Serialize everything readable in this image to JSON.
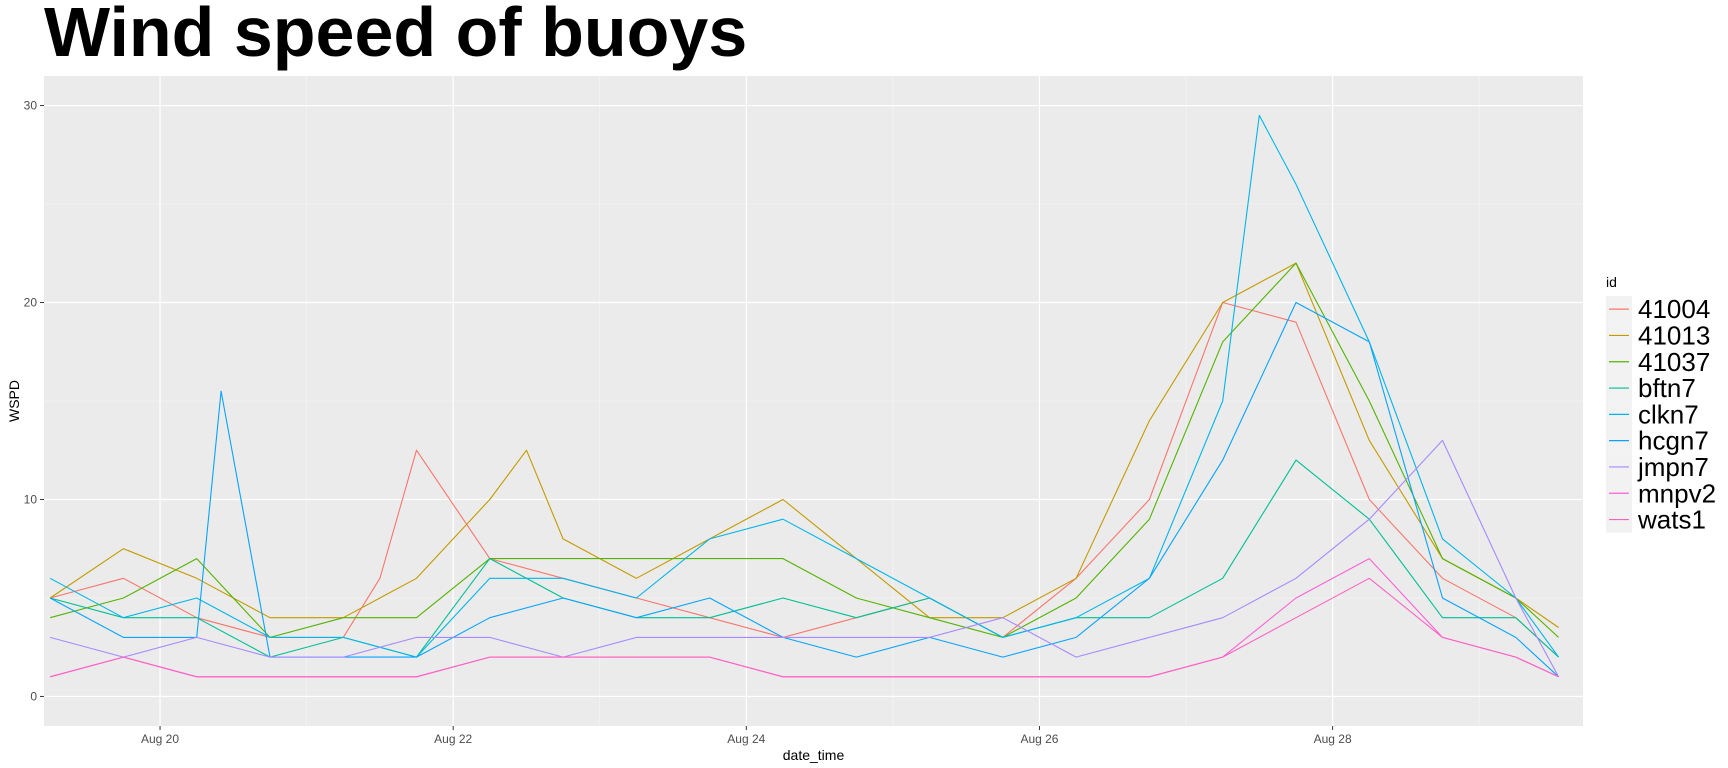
{
  "chart_data": {
    "type": "line",
    "title": "Wind speed of buoys",
    "xlabel": "date_time",
    "ylabel": "WSPD",
    "x_range": [
      "2020-08-19T05:00",
      "2020-08-29T17:00"
    ],
    "ylim": [
      -1.5,
      31.5
    ],
    "x_ticks": [
      "Aug 20",
      "Aug 22",
      "Aug 24",
      "Aug 26",
      "Aug 28"
    ],
    "x_tick_dates": [
      "2020-08-20",
      "2020-08-22",
      "2020-08-24",
      "2020-08-26",
      "2020-08-28"
    ],
    "y_ticks": [
      0,
      10,
      20,
      30
    ],
    "grid": true,
    "legend_title": "id",
    "legend_position": "right",
    "series": [
      {
        "name": "41004",
        "color": "#F8766D",
        "x": [
          "2020-08-19T06:00",
          "2020-08-19T18:00",
          "2020-08-20T06:00",
          "2020-08-20T18:00",
          "2020-08-21T06:00",
          "2020-08-21T12:00",
          "2020-08-21T18:00",
          "2020-08-22T06:00",
          "2020-08-22T18:00",
          "2020-08-23T06:00",
          "2020-08-23T18:00",
          "2020-08-24T06:00",
          "2020-08-24T18:00",
          "2020-08-25T06:00",
          "2020-08-25T18:00",
          "2020-08-26T06:00",
          "2020-08-26T18:00",
          "2020-08-27T06:00",
          "2020-08-27T18:00",
          "2020-08-28T06:00",
          "2020-08-28T18:00",
          "2020-08-29T06:00",
          "2020-08-29T13:00"
        ],
        "y": [
          5,
          6,
          4,
          3,
          3,
          6,
          12.5,
          7,
          6,
          5,
          4,
          3,
          4,
          5,
          3,
          6,
          10,
          20,
          19,
          10,
          6,
          4,
          2
        ]
      },
      {
        "name": "41013",
        "color": "#C49A00",
        "x": [
          "2020-08-19T06:00",
          "2020-08-19T18:00",
          "2020-08-20T06:00",
          "2020-08-20T18:00",
          "2020-08-21T06:00",
          "2020-08-21T18:00",
          "2020-08-22T06:00",
          "2020-08-22T12:00",
          "2020-08-22T18:00",
          "2020-08-23T06:00",
          "2020-08-23T18:00",
          "2020-08-24T06:00",
          "2020-08-24T18:00",
          "2020-08-25T06:00",
          "2020-08-25T18:00",
          "2020-08-26T06:00",
          "2020-08-26T18:00",
          "2020-08-27T06:00",
          "2020-08-27T18:00",
          "2020-08-28T06:00",
          "2020-08-28T18:00",
          "2020-08-29T06:00",
          "2020-08-29T13:00"
        ],
        "y": [
          5,
          7.5,
          6,
          4,
          4,
          6,
          10,
          12.5,
          8,
          6,
          8,
          10,
          7,
          4,
          4,
          6,
          14,
          20,
          22,
          13,
          7,
          5,
          3.5
        ]
      },
      {
        "name": "41037",
        "color": "#53B400",
        "x": [
          "2020-08-19T06:00",
          "2020-08-19T18:00",
          "2020-08-20T06:00",
          "2020-08-20T18:00",
          "2020-08-21T06:00",
          "2020-08-21T18:00",
          "2020-08-22T06:00",
          "2020-08-22T18:00",
          "2020-08-23T06:00",
          "2020-08-23T18:00",
          "2020-08-24T06:00",
          "2020-08-24T18:00",
          "2020-08-25T06:00",
          "2020-08-25T18:00",
          "2020-08-26T06:00",
          "2020-08-26T18:00",
          "2020-08-27T06:00",
          "2020-08-27T18:00",
          "2020-08-28T06:00",
          "2020-08-28T18:00",
          "2020-08-29T06:00",
          "2020-08-29T13:00"
        ],
        "y": [
          4,
          5,
          7,
          3,
          4,
          4,
          7,
          7,
          7,
          7,
          7,
          5,
          4,
          3,
          5,
          9,
          18,
          22,
          15,
          7,
          5,
          3
        ]
      },
      {
        "name": "bftn7",
        "color": "#00C094",
        "x": [
          "2020-08-19T06:00",
          "2020-08-19T18:00",
          "2020-08-20T06:00",
          "2020-08-20T18:00",
          "2020-08-21T06:00",
          "2020-08-21T18:00",
          "2020-08-22T06:00",
          "2020-08-22T18:00",
          "2020-08-23T06:00",
          "2020-08-23T18:00",
          "2020-08-24T06:00",
          "2020-08-24T18:00",
          "2020-08-25T06:00",
          "2020-08-25T18:00",
          "2020-08-26T06:00",
          "2020-08-26T18:00",
          "2020-08-27T06:00",
          "2020-08-27T18:00",
          "2020-08-28T06:00",
          "2020-08-28T18:00",
          "2020-08-29T06:00",
          "2020-08-29T13:00"
        ],
        "y": [
          5,
          4,
          4,
          2,
          3,
          2,
          7,
          5,
          4,
          4,
          5,
          4,
          5,
          3,
          4,
          4,
          6,
          12,
          9,
          4,
          4,
          2
        ]
      },
      {
        "name": "clkn7",
        "color": "#00B6EB",
        "x": [
          "2020-08-19T06:00",
          "2020-08-19T18:00",
          "2020-08-20T06:00",
          "2020-08-20T18:00",
          "2020-08-21T06:00",
          "2020-08-21T18:00",
          "2020-08-22T06:00",
          "2020-08-22T18:00",
          "2020-08-23T06:00",
          "2020-08-23T18:00",
          "2020-08-24T06:00",
          "2020-08-24T18:00",
          "2020-08-25T06:00",
          "2020-08-25T18:00",
          "2020-08-26T06:00",
          "2020-08-26T18:00",
          "2020-08-27T06:00",
          "2020-08-27T12:00",
          "2020-08-27T18:00",
          "2020-08-28T06:00",
          "2020-08-28T18:00",
          "2020-08-29T06:00",
          "2020-08-29T13:00"
        ],
        "y": [
          6,
          4,
          5,
          3,
          3,
          2,
          6,
          6,
          5,
          8,
          9,
          7,
          5,
          3,
          4,
          6,
          15,
          29.5,
          26,
          18,
          8,
          5,
          2
        ]
      },
      {
        "name": "hcgn7",
        "color": "#06A4FF",
        "x": [
          "2020-08-19T06:00",
          "2020-08-19T18:00",
          "2020-08-20T06:00",
          "2020-08-20T10:00",
          "2020-08-20T18:00",
          "2020-08-21T06:00",
          "2020-08-21T18:00",
          "2020-08-22T06:00",
          "2020-08-22T18:00",
          "2020-08-23T06:00",
          "2020-08-23T18:00",
          "2020-08-24T06:00",
          "2020-08-24T18:00",
          "2020-08-25T06:00",
          "2020-08-25T18:00",
          "2020-08-26T06:00",
          "2020-08-26T18:00",
          "2020-08-27T06:00",
          "2020-08-27T18:00",
          "2020-08-28T06:00",
          "2020-08-28T18:00",
          "2020-08-29T06:00",
          "2020-08-29T13:00"
        ],
        "y": [
          5,
          3,
          3,
          15.5,
          2,
          2,
          2,
          4,
          5,
          4,
          5,
          3,
          2,
          3,
          2,
          3,
          6,
          12,
          20,
          18,
          5,
          3,
          1
        ]
      },
      {
        "name": "jmpn7",
        "color": "#A58AFF",
        "x": [
          "2020-08-19T06:00",
          "2020-08-19T18:00",
          "2020-08-20T06:00",
          "2020-08-20T18:00",
          "2020-08-21T06:00",
          "2020-08-21T18:00",
          "2020-08-22T06:00",
          "2020-08-22T18:00",
          "2020-08-23T06:00",
          "2020-08-23T18:00",
          "2020-08-24T06:00",
          "2020-08-24T18:00",
          "2020-08-25T06:00",
          "2020-08-25T18:00",
          "2020-08-26T06:00",
          "2020-08-26T18:00",
          "2020-08-27T06:00",
          "2020-08-27T18:00",
          "2020-08-28T06:00",
          "2020-08-28T18:00",
          "2020-08-29T06:00",
          "2020-08-29T13:00"
        ],
        "y": [
          3,
          2,
          3,
          2,
          2,
          3,
          3,
          2,
          3,
          3,
          3,
          3,
          3,
          4,
          2,
          3,
          4,
          6,
          9,
          13,
          5,
          1
        ]
      },
      {
        "name": "mnpv2",
        "color": "#FB61D7",
        "x": [
          "2020-08-19T06:00",
          "2020-08-19T18:00",
          "2020-08-20T06:00",
          "2020-08-20T18:00",
          "2020-08-21T06:00",
          "2020-08-21T18:00",
          "2020-08-22T06:00",
          "2020-08-22T18:00",
          "2020-08-23T06:00",
          "2020-08-23T18:00",
          "2020-08-24T06:00",
          "2020-08-24T18:00",
          "2020-08-25T06:00",
          "2020-08-25T18:00",
          "2020-08-26T06:00",
          "2020-08-26T18:00",
          "2020-08-27T06:00",
          "2020-08-27T18:00",
          "2020-08-28T06:00",
          "2020-08-28T18:00",
          "2020-08-29T06:00",
          "2020-08-29T13:00"
        ],
        "y": [
          1,
          2,
          1,
          1,
          1,
          1,
          2,
          2,
          2,
          2,
          1,
          1,
          1,
          1,
          1,
          1,
          2,
          5,
          7,
          3,
          2,
          1
        ]
      },
      {
        "name": "wats1",
        "color": "#FF61C3",
        "x": [
          "2020-08-19T06:00",
          "2020-08-19T18:00",
          "2020-08-20T06:00",
          "2020-08-20T18:00",
          "2020-08-21T06:00",
          "2020-08-21T18:00",
          "2020-08-22T06:00",
          "2020-08-22T18:00",
          "2020-08-23T06:00",
          "2020-08-23T18:00",
          "2020-08-24T06:00",
          "2020-08-24T18:00",
          "2020-08-25T06:00",
          "2020-08-25T18:00",
          "2020-08-26T06:00",
          "2020-08-26T18:00",
          "2020-08-27T06:00",
          "2020-08-27T18:00",
          "2020-08-28T06:00",
          "2020-08-28T18:00",
          "2020-08-29T06:00",
          "2020-08-29T13:00"
        ],
        "y": [
          1,
          2,
          1,
          1,
          1,
          1,
          2,
          2,
          2,
          2,
          1,
          1,
          1,
          1,
          1,
          1,
          2,
          4,
          6,
          3,
          2,
          1
        ]
      }
    ]
  }
}
